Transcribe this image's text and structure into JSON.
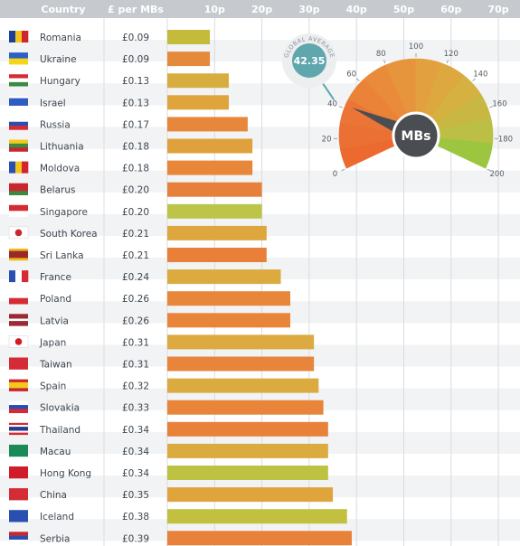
{
  "header": {
    "country": "Country",
    "price": "£ per MBs",
    "ticks": [
      "10p",
      "20p",
      "30p",
      "40p",
      "50p",
      "60p",
      "70p"
    ]
  },
  "colors": {
    "header_bg": "#c6cacf",
    "row_alt": "#f2f3f4",
    "grid": "#d9dcdf",
    "gauge_needle": "#4a4d51",
    "gauge_badge": "#5fa7ad"
  },
  "chart_data": {
    "type": "bar",
    "orientation": "horizontal",
    "xlabel": "£ per MBs",
    "xlim": [
      0,
      0.75
    ],
    "x_ticks": [
      0.1,
      0.2,
      0.3,
      0.4,
      0.5,
      0.6,
      0.7
    ],
    "categories": [
      "Romania",
      "Ukraine",
      "Hungary",
      "Israel",
      "Russia",
      "Lithuania",
      "Moldova",
      "Belarus",
      "Singapore",
      "South Korea",
      "Sri Lanka",
      "France",
      "Poland",
      "Latvia",
      "Japan",
      "Taiwan",
      "Spain",
      "Slovakia",
      "Thailand",
      "Macau",
      "Hong Kong",
      "China",
      "Iceland",
      "Serbia"
    ],
    "price_labels": [
      "£0.09",
      "£0.09",
      "£0.13",
      "£0.13",
      "£0.17",
      "£0.18",
      "£0.18",
      "£0.20",
      "£0.20",
      "£0.21",
      "£0.21",
      "£0.24",
      "£0.26",
      "£0.26",
      "£0.31",
      "£0.31",
      "£0.32",
      "£0.33",
      "£0.34",
      "£0.34",
      "£0.34",
      "£0.35",
      "£0.38",
      "£0.39"
    ],
    "values": [
      0.09,
      0.09,
      0.13,
      0.13,
      0.17,
      0.18,
      0.18,
      0.2,
      0.2,
      0.21,
      0.21,
      0.24,
      0.26,
      0.26,
      0.31,
      0.31,
      0.32,
      0.33,
      0.34,
      0.34,
      0.34,
      0.35,
      0.38,
      0.39
    ],
    "bar_colors": [
      "#c4bb3c",
      "#e58a3c",
      "#d8ad3f",
      "#e0a43d",
      "#e7873b",
      "#e0a13d",
      "#e8873a",
      "#e7803b",
      "#bcc547",
      "#dda73d",
      "#e8803a",
      "#dcab40",
      "#e8873a",
      "#e8853b",
      "#dcaa40",
      "#e7853b",
      "#dbab3f",
      "#e8853a",
      "#e8813a",
      "#dcab40",
      "#bec243",
      "#e0a43d",
      "#c3bf3f",
      "#e8813a"
    ],
    "flags": [
      {
        "type": "v",
        "colors": [
          "#1e3f9a",
          "#f2c51c",
          "#d2242f"
        ]
      },
      {
        "type": "h",
        "colors": [
          "#2b62c4",
          "#f5d41c"
        ]
      },
      {
        "type": "h",
        "colors": [
          "#d52b35",
          "#ffffff",
          "#3c8a44"
        ]
      },
      {
        "type": "h",
        "colors": [
          "#ffffff",
          "#2e5bc4",
          "#ffffff"
        ],
        "stripes": [
          0.18,
          0.64,
          0.18
        ]
      },
      {
        "type": "h",
        "colors": [
          "#ffffff",
          "#2a4fb0",
          "#d52b35"
        ]
      },
      {
        "type": "h",
        "colors": [
          "#f5c81c",
          "#3a8a44",
          "#c9272f"
        ]
      },
      {
        "type": "v",
        "colors": [
          "#2a4fb0",
          "#f2c51c",
          "#d2242f"
        ]
      },
      {
        "type": "h",
        "colors": [
          "#c9272f",
          "#c9272f",
          "#3a8a44"
        ],
        "stripes": [
          0.67,
          0.0,
          0.33
        ]
      },
      {
        "type": "h",
        "colors": [
          "#d52b35",
          "#ffffff"
        ]
      },
      {
        "type": "circle",
        "colors": [
          "#ffffff",
          "#c9272f"
        ]
      },
      {
        "type": "h",
        "colors": [
          "#f5b81c",
          "#9a2a2a",
          "#f5b81c"
        ],
        "stripes": [
          0.2,
          0.6,
          0.2
        ]
      },
      {
        "type": "v",
        "colors": [
          "#2a4fb0",
          "#ffffff",
          "#d52b35"
        ]
      },
      {
        "type": "h",
        "colors": [
          "#ffffff",
          "#d52b35"
        ]
      },
      {
        "type": "h",
        "colors": [
          "#9b2a35",
          "#ffffff",
          "#9b2a35"
        ],
        "stripes": [
          0.4,
          0.2,
          0.4
        ]
      },
      {
        "type": "circle",
        "colors": [
          "#ffffff",
          "#d01c2a"
        ]
      },
      {
        "type": "h",
        "colors": [
          "#d52b35",
          "#d52b35"
        ]
      },
      {
        "type": "h",
        "colors": [
          "#c9272f",
          "#f5c81c",
          "#c9272f"
        ],
        "stripes": [
          0.25,
          0.5,
          0.25
        ]
      },
      {
        "type": "h",
        "colors": [
          "#ffffff",
          "#2a4fb0",
          "#d52b35"
        ]
      },
      {
        "type": "h",
        "colors": [
          "#d52b35",
          "#ffffff",
          "#2a3a8a",
          "#ffffff",
          "#d52b35"
        ],
        "stripes": [
          0.17,
          0.16,
          0.34,
          0.16,
          0.17
        ]
      },
      {
        "type": "h",
        "colors": [
          "#1b8a5a",
          "#1b8a5a"
        ]
      },
      {
        "type": "h",
        "colors": [
          "#d01c2a",
          "#d01c2a"
        ]
      },
      {
        "type": "h",
        "colors": [
          "#d52b35",
          "#d52b35"
        ]
      },
      {
        "type": "h",
        "colors": [
          "#2a4fb0",
          "#2a4fb0"
        ]
      },
      {
        "type": "h",
        "colors": [
          "#c9272f",
          "#2a4fb0",
          "#ffffff"
        ]
      }
    ]
  },
  "gauge": {
    "label": "MBs",
    "global_average_label": "GLOBAL AVERAGE",
    "global_average_value": "42.35",
    "min": 0,
    "max": 200,
    "ticks": [
      "0",
      "20",
      "40",
      "60",
      "80",
      "100",
      "120",
      "140",
      "160",
      "180",
      "200"
    ],
    "value": 42.35
  }
}
